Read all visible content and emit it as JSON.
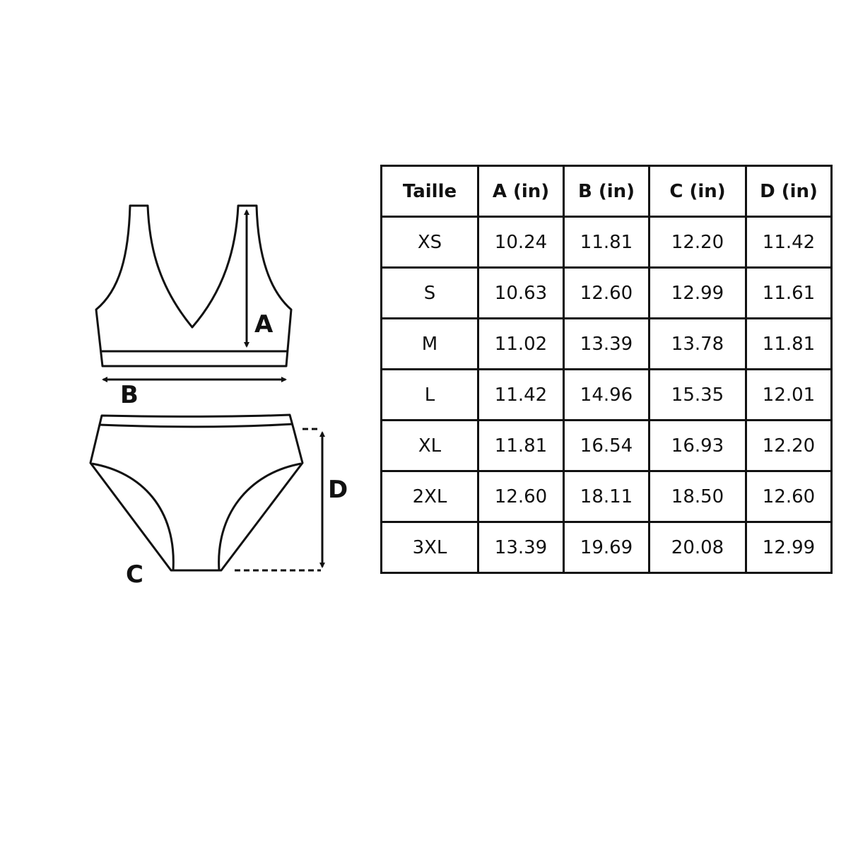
{
  "diagram": {
    "labels": {
      "a": "A",
      "b": "B",
      "c": "C",
      "d": "D"
    }
  },
  "size_table": {
    "headers": [
      "Taille",
      "A (in)",
      "B (in)",
      "C (in)",
      "D (in)"
    ],
    "rows": [
      [
        "XS",
        "10.24",
        "11.81",
        "12.20",
        "11.42"
      ],
      [
        "S",
        "10.63",
        "12.60",
        "12.99",
        "11.61"
      ],
      [
        "M",
        "11.02",
        "13.39",
        "13.78",
        "11.81"
      ],
      [
        "L",
        "11.42",
        "14.96",
        "15.35",
        "12.01"
      ],
      [
        "XL",
        "11.81",
        "16.54",
        "16.93",
        "12.20"
      ],
      [
        "2XL",
        "12.60",
        "18.11",
        "18.50",
        "12.60"
      ],
      [
        "3XL",
        "13.39",
        "19.69",
        "20.08",
        "12.99"
      ]
    ]
  }
}
